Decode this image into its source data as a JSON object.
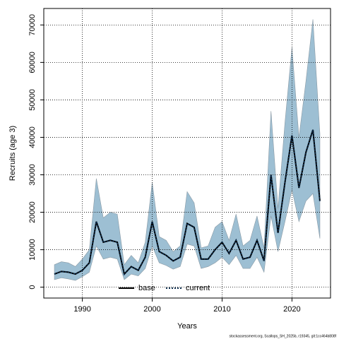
{
  "chart_data": {
    "type": "line",
    "xlabel": "Years",
    "ylabel": "Recruits (age 3)",
    "footer": "stockassessment.org, Scallops_SH_2025b, r19345, git:1cc464b808f",
    "x": [
      1986,
      1987,
      1988,
      1989,
      1990,
      1991,
      1992,
      1993,
      1994,
      1995,
      1996,
      1997,
      1998,
      1999,
      2000,
      2001,
      2002,
      2003,
      2004,
      2005,
      2006,
      2007,
      2008,
      2009,
      2010,
      2011,
      2012,
      2013,
      2014,
      2015,
      2016,
      2017,
      2018,
      2019,
      2020,
      2021,
      2022,
      2023,
      2024
    ],
    "series": [
      {
        "name": "base",
        "color": "#000000",
        "values": [
          3500,
          4200,
          4000,
          3500,
          4500,
          6500,
          17500,
          12000,
          12500,
          12000,
          3500,
          5500,
          4500,
          8000,
          17500,
          9500,
          8500,
          7000,
          8000,
          17000,
          16000,
          7500,
          7500,
          10000,
          12000,
          9000,
          12500,
          7500,
          8000,
          12500,
          7000,
          30000,
          14500,
          28000,
          40500,
          26500,
          36000,
          42000,
          23000
        ]
      },
      {
        "name": "current",
        "color": "#0a2a4a",
        "dash": true,
        "values": [
          3500,
          4200,
          4000,
          3500,
          4500,
          6500,
          17500,
          12000,
          12500,
          12000,
          3500,
          5500,
          4500,
          8000,
          17500,
          9500,
          8500,
          7000,
          8000,
          17000,
          16000,
          7500,
          7500,
          10000,
          12000,
          9000,
          12500,
          7500,
          8000,
          12500,
          7000,
          30000,
          14500,
          28000,
          40500,
          26500,
          36000,
          42000,
          23000
        ]
      }
    ],
    "band_color": "#9dbfd3",
    "band_upper": [
      6000,
      6800,
      6500,
      5500,
      7500,
      10000,
      29000,
      18500,
      20000,
      19500,
      6000,
      8500,
      6500,
      12000,
      28000,
      13500,
      12500,
      9500,
      11000,
      25500,
      22500,
      10500,
      11000,
      16000,
      17500,
      12500,
      19500,
      11000,
      12500,
      19000,
      10500,
      47000,
      21000,
      44000,
      64000,
      40000,
      55000,
      71500,
      41000
    ],
    "band_lower": [
      2000,
      2500,
      2200,
      1800,
      2800,
      4000,
      11000,
      7500,
      8000,
      7500,
      2000,
      3500,
      3000,
      5000,
      11000,
      6500,
      5800,
      4800,
      5500,
      11500,
      11000,
      5000,
      5500,
      6500,
      8000,
      6000,
      8500,
      5000,
      5000,
      8000,
      4000,
      19000,
      9500,
      17500,
      26000,
      17500,
      23000,
      25000,
      13000
    ],
    "xlim": [
      1984.48,
      2025.52
    ],
    "xticks": [
      1990,
      2000,
      2010,
      2020
    ],
    "ylim": [
      -2900,
      74400
    ],
    "yticks": [
      0,
      10000,
      20000,
      30000,
      40000,
      50000,
      60000,
      70000
    ],
    "grid": true,
    "legend": "bottom"
  }
}
